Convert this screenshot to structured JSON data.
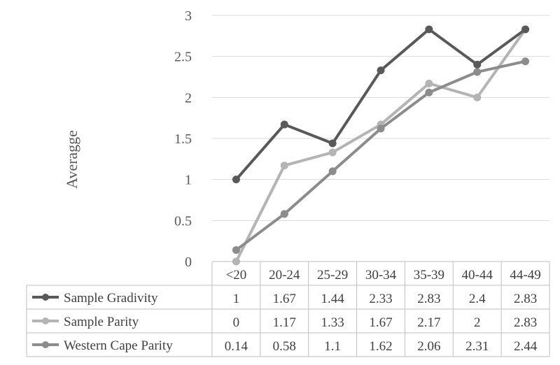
{
  "chart_data": {
    "type": "line",
    "ylabel": "Averagge",
    "ylim": [
      0,
      3
    ],
    "yticks": [
      "0",
      "0.5",
      "1",
      "1.5",
      "2",
      "2.5",
      "3"
    ],
    "grid": true,
    "legend": "data-table",
    "categories": [
      "<20",
      "20-24",
      "25-29",
      "30-34",
      "35-39",
      "40-44",
      "44-49"
    ],
    "series": [
      {
        "name": "Sample Gradivity",
        "color": "#595959",
        "values": [
          1,
          1.67,
          1.44,
          2.33,
          2.83,
          2.4,
          2.83
        ],
        "labels": [
          "1",
          "1.67",
          "1.44",
          "2.33",
          "2.83",
          "2.4",
          "2.83"
        ]
      },
      {
        "name": "Sample Parity",
        "color": "#b4b4b4",
        "values": [
          0,
          1.17,
          1.33,
          1.67,
          2.17,
          2,
          2.83
        ],
        "labels": [
          "0",
          "1.17",
          "1.33",
          "1.67",
          "2.17",
          "2",
          "2.83"
        ]
      },
      {
        "name": "Western Cape Parity",
        "color": "#8c8c8c",
        "values": [
          0.14,
          0.58,
          1.1,
          1.62,
          2.06,
          2.31,
          2.44
        ],
        "labels": [
          "0.14",
          "0.58",
          "1.1",
          "1.62",
          "2.06",
          "2.31",
          "2.44"
        ]
      }
    ]
  }
}
